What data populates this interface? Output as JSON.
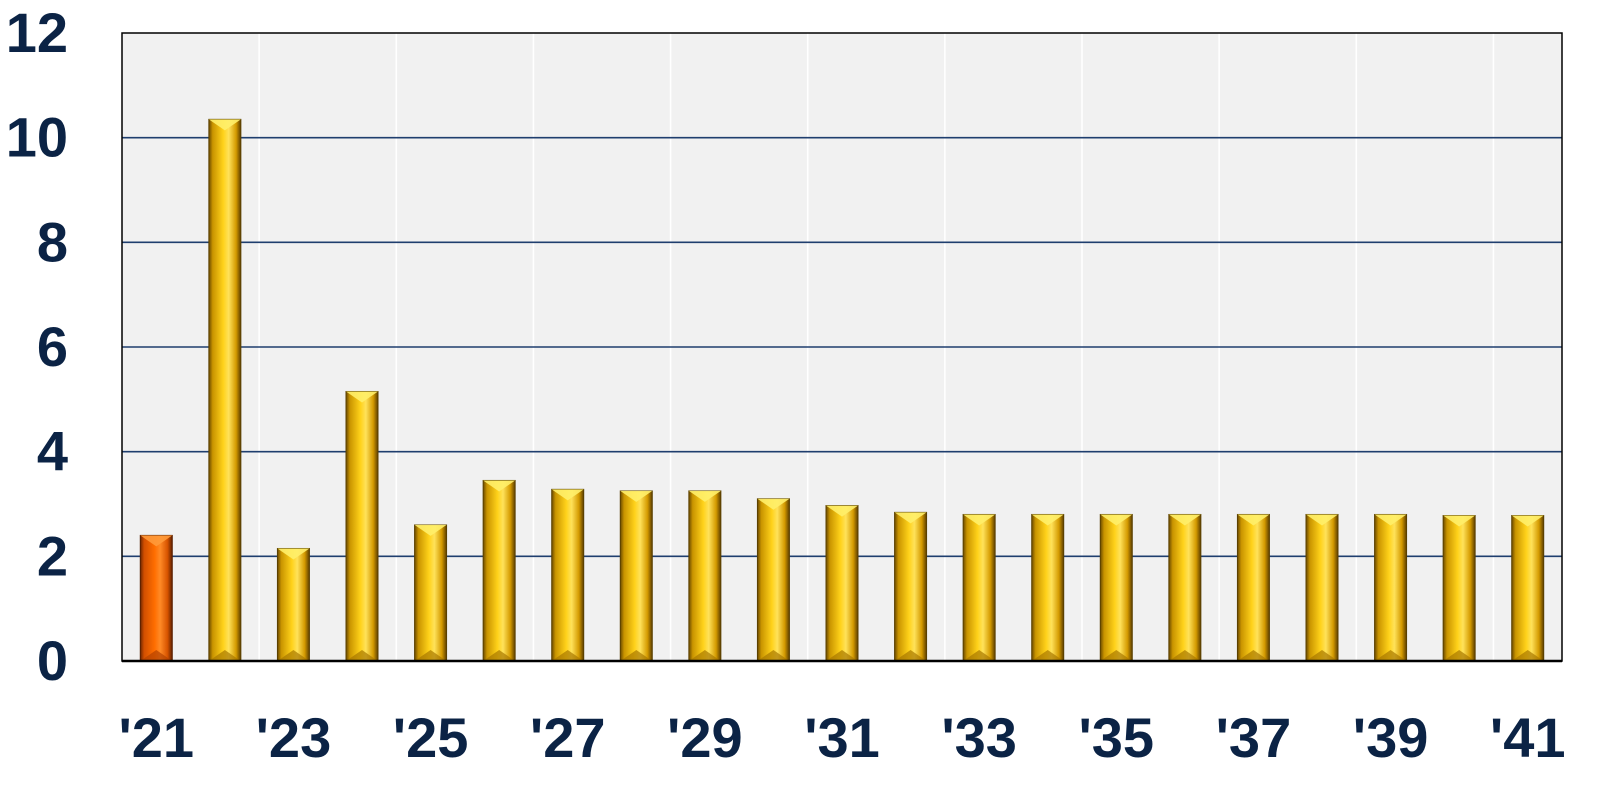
{
  "chart_data": {
    "type": "bar",
    "title": "",
    "xlabel": "",
    "ylabel": "",
    "ylim": [
      0,
      12
    ],
    "yticks": [
      "0",
      "2",
      "4",
      "6",
      "8",
      "10",
      "12"
    ],
    "categories": [
      "'21",
      "'22",
      "'23",
      "'24",
      "'25",
      "'26",
      "'27",
      "'28",
      "'29",
      "'30",
      "'31",
      "'32",
      "'33",
      "'34",
      "'35",
      "'36",
      "'37",
      "'38",
      "'39",
      "'40",
      "'41"
    ],
    "x_tick_labels": [
      "'21",
      "'23",
      "'25",
      "'27",
      "'29",
      "'31",
      "'33",
      "'35",
      "'37",
      "'39",
      "'41"
    ],
    "values": [
      2.4,
      10.35,
      2.15,
      5.15,
      2.6,
      3.45,
      3.28,
      3.25,
      3.25,
      3.1,
      2.97,
      2.84,
      2.8,
      2.8,
      2.8,
      2.8,
      2.8,
      2.8,
      2.8,
      2.78,
      2.78
    ],
    "highlight_index": 0,
    "grid": true,
    "legend": "none",
    "colors": {
      "bar": "#ffc800",
      "bar_highlight": "#ff6a00",
      "plot_background": "#f1f1f1",
      "grid_horizontal": "#1f3e6e",
      "grid_vertical": "#ffffff",
      "axis": "#000000",
      "text": "#0b2345"
    }
  }
}
